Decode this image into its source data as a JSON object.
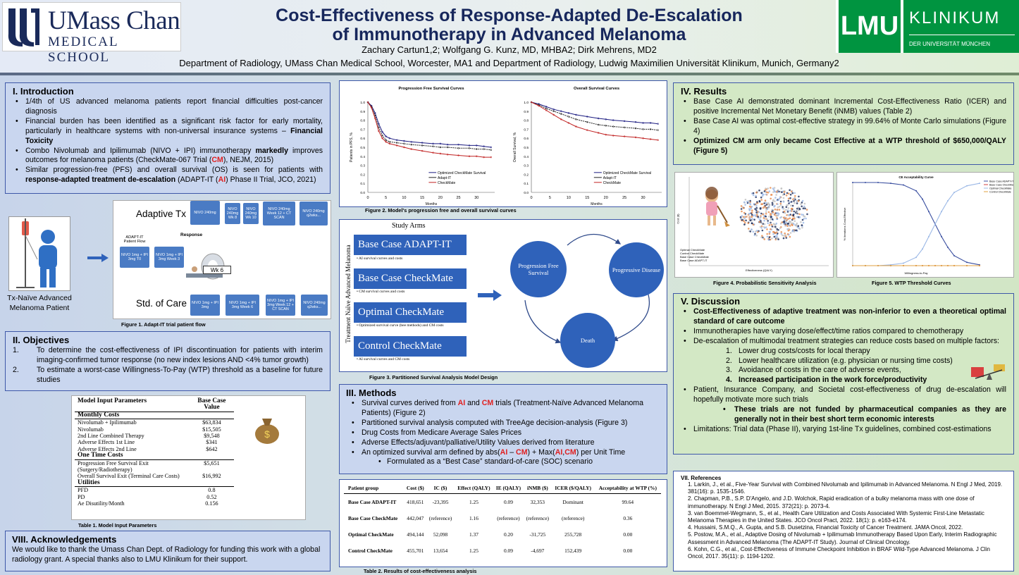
{
  "header": {
    "umass_logo_main": "UMass Chan",
    "umass_logo_sub": "MEDICAL SCHOOL",
    "lmu_logo": "LMU",
    "klinikum": "KLINIKUM",
    "klinikum_sub": "DER UNIVERSITÄT MÜNCHEN",
    "title_line1": "Cost-Effectiveness of Response-Adapted De-Escalation",
    "title_line2": "of Immunotherapy in Advanced Melanoma",
    "authors": "Zachary Cartun1,2; Wolfgang G. Kunz, MD, MHBA2; Dirk Mehrens, MD2",
    "affiliation": "Department of Radiology, UMass Chan Medical School, Worcester, MA1 and Department of Radiology, Ludwig Maximilien Universität Klinikum, Munich, Germany2"
  },
  "intro": {
    "heading": "I. Introduction",
    "bullets": [
      "1/4th of US advanced melanoma patients report financial difficulties post-cancer diagnosis",
      "Financial burden has been identified as a significant risk factor for early mortality, particularly in healthcare systems with non-universal insurance systems – Financial Toxicity",
      "Combo Nivolumab and Ipilimumab (NIVO + IPI) immunotherapy markedly improves outcomes for melanoma patients (CheckMate-067 Trial (CM), NEJM, 2015)",
      "Similar progression-free (PFS) and overall survival (OS) is seen for patients with response-adapted treatment de-escalation (ADAPT-IT (AI) Phase II Trial, JCO, 2021)"
    ]
  },
  "fig1": {
    "patient_label": "Tx-Naïve Advanced Melanoma Patient",
    "adaptive": "Adaptive Tx",
    "std": "Std. of Care",
    "patient_flow": "ADAPT-IT Patient Flow",
    "response": "Response",
    "wk6": "Wk 6",
    "boxes_top": [
      "NIVO 240mg",
      "NIVO 240mg Wk 8",
      "NIVO 240mg Wk 10",
      "NIVO 240mg Week 12 + CT SCAN",
      "NIVO 240mg q2wks..."
    ],
    "boxes_mid": [
      "NIVO 1mg + IPI 3mg T0",
      "NIVO 1mg + IPI 3mg Week 3"
    ],
    "boxes_bot": [
      "NIVO 1mg + IPI 3mg",
      "NIVO 1mg + IPI 3mg Week 6",
      "NIVO 1mg + IPI 3mg Week 12 + CT SCAN",
      "NIVO 240mg q2wks..."
    ],
    "caption": "Figure 1. Adapt-IT trial patient flow"
  },
  "objectives": {
    "heading": "II. Objectives",
    "items": [
      "To determine the cost-effectiveness of IPI discontinuation for patients with interim imaging-confirmed tumor response (no new index lesions AND <4% tumor growth)",
      "To estimate a worst-case Willingness-To-Pay (WTP) threshold as a baseline for future studies"
    ]
  },
  "table1": {
    "col1": "Model Input Parameters",
    "col2": "Base Case Value",
    "caption": "Table 1. Model Input Parameters",
    "groups": [
      {
        "title": "Monthly Costs",
        "rows": [
          [
            "Nivolumab + Ipilimumab",
            "$63,834"
          ],
          [
            "Nivolumab",
            "$15,505"
          ],
          [
            "2nd Line Combined Therapy",
            "$9,548"
          ],
          [
            "Adverse Effects 1st Line",
            "$341"
          ],
          [
            "Adverse Effects 2nd Line",
            "$642"
          ]
        ]
      },
      {
        "title": "One Time Costs",
        "rows": [
          [
            "Progression Free Survival Exit (Surgery/Radiotherapy)",
            "$5,651"
          ],
          [
            "Overall Survival Exit (Terminal Care Costs)",
            "$16,992"
          ]
        ]
      },
      {
        "title": "Utilities",
        "rows": [
          [
            "PFD",
            "0.8"
          ],
          [
            "PD",
            "0.52"
          ],
          [
            "Ae Disutility/Month",
            "0.156"
          ]
        ]
      }
    ]
  },
  "acknowledgements": {
    "heading": "VIII. Acknowledgements",
    "text": "We would like to thank the Umass Chan Dept. of Radiology for funding this work with a global radiology grant. A special thanks also to LMU Klinikum for their support."
  },
  "fig2": {
    "caption": "Figure 2. Model's progression free and overall survival curves",
    "chart_data": [
      {
        "type": "line",
        "title": "Progression Free Survival Curves",
        "xlabel": "Months",
        "ylabel": "Patients in PFS, %",
        "xlim": [
          0,
          35
        ],
        "ylim": [
          0,
          1
        ],
        "xticks": [
          0,
          5,
          10,
          15,
          20,
          25,
          30
        ],
        "yticks": [
          0.0,
          0.1,
          0.2,
          0.3,
          0.4,
          0.5,
          0.6,
          0.7,
          0.8,
          0.9,
          1.0
        ],
        "x": [
          0,
          1,
          2,
          3,
          4,
          5,
          6,
          8,
          10,
          12,
          15,
          18,
          20,
          22,
          25,
          28,
          30,
          32,
          34
        ],
        "series": [
          {
            "name": "Optimized CheckMate Survival",
            "color": "#1a1a80",
            "values": [
              1.0,
              0.96,
              0.88,
              0.76,
              0.67,
              0.62,
              0.6,
              0.58,
              0.57,
              0.56,
              0.55,
              0.54,
              0.54,
              0.53,
              0.53,
              0.52,
              0.52,
              0.51,
              0.5
            ]
          },
          {
            "name": "Adapt-IT",
            "color": "#222222",
            "values": [
              1.0,
              0.95,
              0.85,
              0.72,
              0.63,
              0.58,
              0.56,
              0.55,
              0.54,
              0.53,
              0.52,
              0.51,
              0.5,
              0.5,
              0.49,
              0.49,
              0.48,
              0.48,
              0.47
            ]
          },
          {
            "name": "CheckMate",
            "color": "#c02020",
            "values": [
              1.0,
              0.94,
              0.82,
              0.68,
              0.6,
              0.56,
              0.54,
              0.52,
              0.5,
              0.48,
              0.46,
              0.44,
              0.43,
              0.42,
              0.41,
              0.4,
              0.4,
              0.39,
              0.39
            ]
          }
        ]
      },
      {
        "type": "line",
        "title": "Overall Survival Curves",
        "xlabel": "Months",
        "ylabel": "Overall Survival, %",
        "xlim": [
          0,
          35
        ],
        "ylim": [
          0,
          1
        ],
        "xticks": [
          0,
          5,
          10,
          15,
          20,
          25,
          30
        ],
        "yticks": [
          0.0,
          0.1,
          0.2,
          0.3,
          0.4,
          0.5,
          0.6,
          0.7,
          0.8,
          0.9,
          1.0
        ],
        "x": [
          0,
          2,
          4,
          6,
          8,
          10,
          12,
          15,
          18,
          20,
          22,
          25,
          28,
          30,
          32,
          34
        ],
        "series": [
          {
            "name": "Optimized CheckMate Survival",
            "color": "#1a1a80",
            "values": [
              1.0,
              0.98,
              0.95,
              0.92,
              0.9,
              0.88,
              0.86,
              0.84,
              0.82,
              0.81,
              0.8,
              0.79,
              0.78,
              0.77,
              0.77,
              0.76
            ]
          },
          {
            "name": "Adapt-IT",
            "color": "#222222",
            "values": [
              1.0,
              0.97,
              0.93,
              0.9,
              0.87,
              0.84,
              0.81,
              0.78,
              0.75,
              0.74,
              0.73,
              0.72,
              0.71,
              0.7,
              0.7,
              0.69
            ]
          },
          {
            "name": "CheckMate",
            "color": "#c02020",
            "values": [
              1.0,
              0.96,
              0.91,
              0.86,
              0.81,
              0.77,
              0.73,
              0.69,
              0.66,
              0.64,
              0.63,
              0.62,
              0.61,
              0.6,
              0.59,
              0.58
            ]
          }
        ]
      }
    ]
  },
  "fig3": {
    "study_arms": "Study Arms",
    "side": "Treatment Naïve Advanced Melanoma",
    "arms": [
      {
        "name": "Base Case ADAPT-IT",
        "sub": "• AI survival curves and costs"
      },
      {
        "name": "Base Case CheckMate",
        "sub": "• CM survival curves and costs"
      },
      {
        "name": "Optimal CheckMate",
        "sub": "• Optimized survival curve (bee methods) and CM costs"
      },
      {
        "name": "Control CheckMate",
        "sub": "• AI survival curves and CM costs"
      }
    ],
    "states": [
      "Progression Free Survival",
      "Progressive Disease",
      "Death"
    ],
    "caption": "Figure 3. Partitioned Survival Analysis Model Design"
  },
  "methods": {
    "heading": "III. Methods",
    "bullets": [
      "Survival curves derived from AI and CM trials (Treatment-Naïve Advanced Melanoma Patients) (Figure 2)",
      "Partitioned survival analysis computed with TreeAge decision-analysis (Figure 3)",
      "Drug Costs from Medicare Average Sales Prices",
      "Adverse Effects/adjuvant/palliative/Utility Values derived from literature",
      "An optimized survival arm defined by abs(AI – CM) + Max(AI,CM) per Unit Time"
    ],
    "sub": "Formulated as a “Best Case” standard-of-care (SOC) scenario"
  },
  "table2": {
    "caption": "Table 2. Results of cost-effectiveness analysis",
    "headers": [
      "Patient group",
      "Cost ($)",
      "IC ($)",
      "Effect (QALY)",
      "IE (QALY)",
      "iNMB ($)",
      "ICER ($/QALY)",
      "Acceptability at WTP (%)"
    ],
    "rows": [
      [
        "Base Case ADAPT-IT",
        "418,651",
        "-23,395",
        "1.25",
        "0.09",
        "32,353",
        "Dominant",
        "99.64"
      ],
      [
        "Base Case CheckMate",
        "442,047",
        "(reference)",
        "1.16",
        "(reference)",
        "(reference)",
        "(reference)",
        "0.36"
      ],
      [
        "Optimal CheckMate",
        "494,144",
        "52,098",
        "1.37",
        "0.20",
        "-31,725",
        "255,728",
        "0.00"
      ],
      [
        "Control CheckMate",
        "455,701",
        "13,654",
        "1.25",
        "0.09",
        "-4,697",
        "152,439",
        "0.00"
      ]
    ]
  },
  "results": {
    "heading": "IV. Results",
    "bullets": [
      "Base Case AI demonstrated dominant Incremental Cost-Effectiveness Ratio (ICER) and positive Incremental Net Monetary Benefit (iNMB) values (Table 2)",
      "Base Case AI was optimal cost-effective strategy in 99.64% of Monte Carlo simulations (Figure 4)",
      "Optimized CM arm only became Cost Effective at a WTP threshold of $650,000/QALY (Figure 5)"
    ]
  },
  "fig4": {
    "caption": "Figure 4. Probabilistic Sensitivity Analysis",
    "legend": [
      "Optimal CheckMate",
      "Control CheckMate",
      "Base Case CheckMate",
      "Base Case ADAPT-IT"
    ],
    "xlabel": "Effectiveness (QALY)",
    "ylabel": "Cost ($)"
  },
  "fig5": {
    "caption": "Figure 5. WTP Threshold Curves",
    "chart_data": {
      "type": "line",
      "title": "CE Acceptability Curve",
      "xlabel": "Willingness-to-Pay",
      "ylabel": "% Iterations Cost-Effective",
      "xlim": [
        0,
        1000000
      ],
      "ylim": [
        0,
        1
      ],
      "x": [
        0,
        100000,
        200000,
        300000,
        400000,
        500000,
        550000,
        600000,
        650000,
        700000,
        750000,
        800000,
        900000,
        1000000
      ],
      "series": [
        {
          "name": "Base Case ADAPT-IT",
          "color": "#3a4fa0",
          "values": [
            1,
            1,
            1,
            0.99,
            0.97,
            0.9,
            0.8,
            0.65,
            0.5,
            0.35,
            0.22,
            0.12,
            0.04,
            0.01
          ]
        },
        {
          "name": "Base Case CheckMate",
          "color": "#d04040",
          "values": [
            0,
            0,
            0,
            0,
            0,
            0,
            0,
            0,
            0,
            0,
            0,
            0,
            0,
            0
          ]
        },
        {
          "name": "Optimal CheckMate",
          "color": "#9bb8e6",
          "values": [
            0,
            0,
            0,
            0.01,
            0.03,
            0.1,
            0.2,
            0.35,
            0.5,
            0.65,
            0.78,
            0.88,
            0.96,
            0.99
          ]
        },
        {
          "name": "Control CheckMate",
          "color": "#e0a040",
          "values": [
            0,
            0,
            0,
            0,
            0,
            0,
            0,
            0,
            0,
            0,
            0,
            0,
            0,
            0
          ]
        }
      ]
    }
  },
  "discussion": {
    "heading": "V. Discussion",
    "b1": "Cost-Effectiveness of adaptive treatment was non-inferior to even a theoretical optimal standard of care outcome",
    "b2": "Immunotherapies have varying dose/effect/time ratios compared to chemotherapy",
    "b3": "De-escalation of multimodal treatment strategies can reduce costs based on multiple factors:",
    "factors": [
      "Lower drug costs/costs for local therapy",
      "Lower healthcare utilization (e.g. physician or nursing time costs)",
      "Avoidance of costs in the care of adverse events,",
      "Increased participation in the work force/productivity"
    ],
    "b4": "Patient, Insurance Company, and Societal cost-effectiveness of drug de-escalation will hopefully motivate more such trials",
    "b4sub": "These trials are not funded by pharmaceutical companies as they are generally not in their best short term economic interests",
    "b5": "Limitations: Trial data (Phase II), varying 1st-line Tx guidelines, combined cost-estimations"
  },
  "references": {
    "heading": "VII. References",
    "items": [
      "1. Larkin, J., et al., Five-Year Survival with Combined Nivolumab and Ipilimumab in Advanced Melanoma. N Engl J Med, 2019. 381(16): p. 1535-1546.",
      "2. Chapman, P.B., S.P. D'Angelo, and J.D. Wolchok, Rapid eradication of a bulky melanoma mass with one dose of immunotherapy. N Engl J Med, 2015. 372(21): p. 2073-4.",
      "3. van Boemmel-Wegmann, S., et al., Health Care Utilization and Costs Associated With Systemic First-Line Metastatic Melanoma Therapies in the United States. JCO Oncol Pract, 2022. 18(1): p. e163-e174.",
      "4. Hussaini, S.M.Q., A. Gupta, and S.B. Dusetzina, Financial Toxicity of Cancer Treatment. JAMA Oncol, 2022.",
      "5. Postow, M.A., et al., Adaptive Dosing of Nivolumab + Ipilimumab Immunotherapy Based Upon Early, Interim Radiographic Assessment in Advanced Melanoma (The ADAPT-IT Study). Journal of Clinical Oncology.",
      "6. Kohn, C.G., et al., Cost-Effectiveness of Immune Checkpoint Inhibition in BRAF Wild-Type Advanced Melanoma. J Clin Oncol, 2017. 35(11): p. 1194-1202."
    ]
  }
}
